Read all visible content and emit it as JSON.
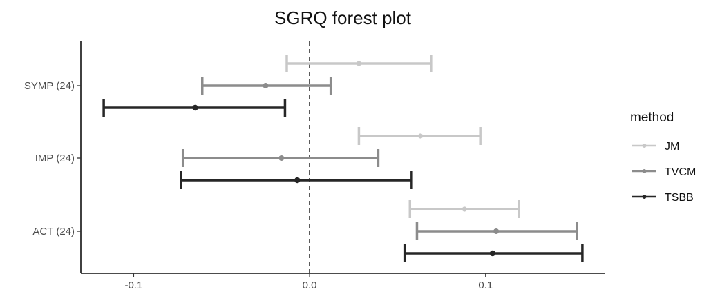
{
  "chart_data": {
    "type": "forest",
    "title": "SGRQ forest plot",
    "xlabel": "",
    "ylabel": "",
    "xlim": [
      -0.13,
      0.168
    ],
    "x_ticks": [
      -0.1,
      0.0,
      0.1
    ],
    "x_tick_labels": [
      "-0.1",
      "0.0",
      "0.1"
    ],
    "reference_line": 0.0,
    "grid": false,
    "categories": [
      "SYMP (24)",
      "IMP (24)",
      "ACT (24)"
    ],
    "legend": {
      "title": "method",
      "position": "right"
    },
    "series": [
      {
        "name": "JM",
        "color": "#c8c8c8",
        "points": [
          {
            "category": "SYMP (24)",
            "estimate": 0.028,
            "lower": -0.013,
            "upper": 0.069
          },
          {
            "category": "IMP (24)",
            "estimate": 0.063,
            "lower": 0.028,
            "upper": 0.097
          },
          {
            "category": "ACT (24)",
            "estimate": 0.088,
            "lower": 0.057,
            "upper": 0.119
          }
        ]
      },
      {
        "name": "TVCM",
        "color": "#8c8c8c",
        "points": [
          {
            "category": "SYMP (24)",
            "estimate": -0.025,
            "lower": -0.061,
            "upper": 0.012
          },
          {
            "category": "IMP (24)",
            "estimate": -0.016,
            "lower": -0.072,
            "upper": 0.039
          },
          {
            "category": "ACT (24)",
            "estimate": 0.106,
            "lower": 0.061,
            "upper": 0.152
          }
        ]
      },
      {
        "name": "TSBB",
        "color": "#262626",
        "points": [
          {
            "category": "SYMP (24)",
            "estimate": -0.065,
            "lower": -0.117,
            "upper": -0.014
          },
          {
            "category": "IMP (24)",
            "estimate": -0.007,
            "lower": -0.073,
            "upper": 0.058
          },
          {
            "category": "ACT (24)",
            "estimate": 0.104,
            "lower": 0.054,
            "upper": 0.155
          }
        ]
      }
    ]
  }
}
